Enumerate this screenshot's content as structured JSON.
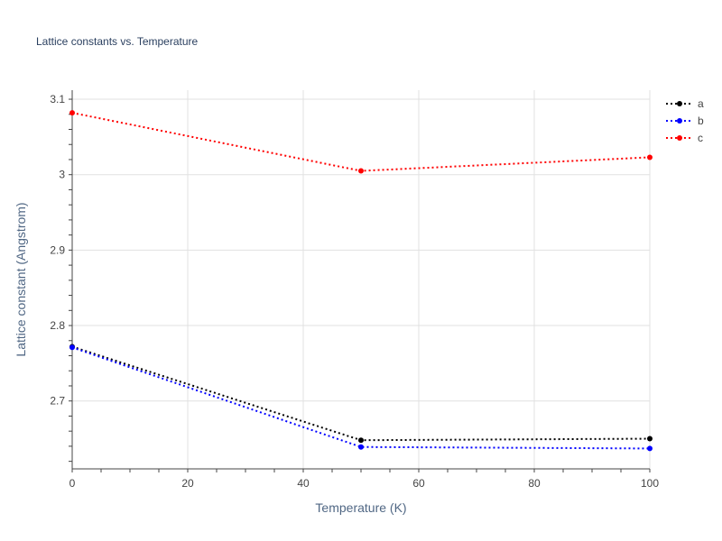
{
  "chart_data": {
    "type": "line",
    "title": "Lattice constants vs. Temperature",
    "xlabel": "Temperature (K)",
    "ylabel": "Lattice constant (Angstrom)",
    "x": [
      0,
      50,
      100
    ],
    "xlim": [
      0,
      100
    ],
    "ylim": [
      2.61,
      3.112
    ],
    "xticks": [
      0,
      20,
      40,
      60,
      80,
      100
    ],
    "yticks": [
      2.7,
      2.8,
      2.9,
      3.0,
      3.1
    ],
    "ytick_labels": [
      "2.7",
      "2.8",
      "2.9",
      "3",
      "3.1"
    ],
    "grid": true,
    "legend_position": "top-right",
    "line_style": "dotted",
    "series": [
      {
        "name": "a",
        "color": "#000000",
        "values": [
          2.772,
          2.648,
          2.65
        ]
      },
      {
        "name": "b",
        "color": "#0000ff",
        "values": [
          2.771,
          2.639,
          2.637
        ]
      },
      {
        "name": "c",
        "color": "#ff0000",
        "values": [
          3.082,
          3.005,
          3.023
        ]
      }
    ]
  }
}
